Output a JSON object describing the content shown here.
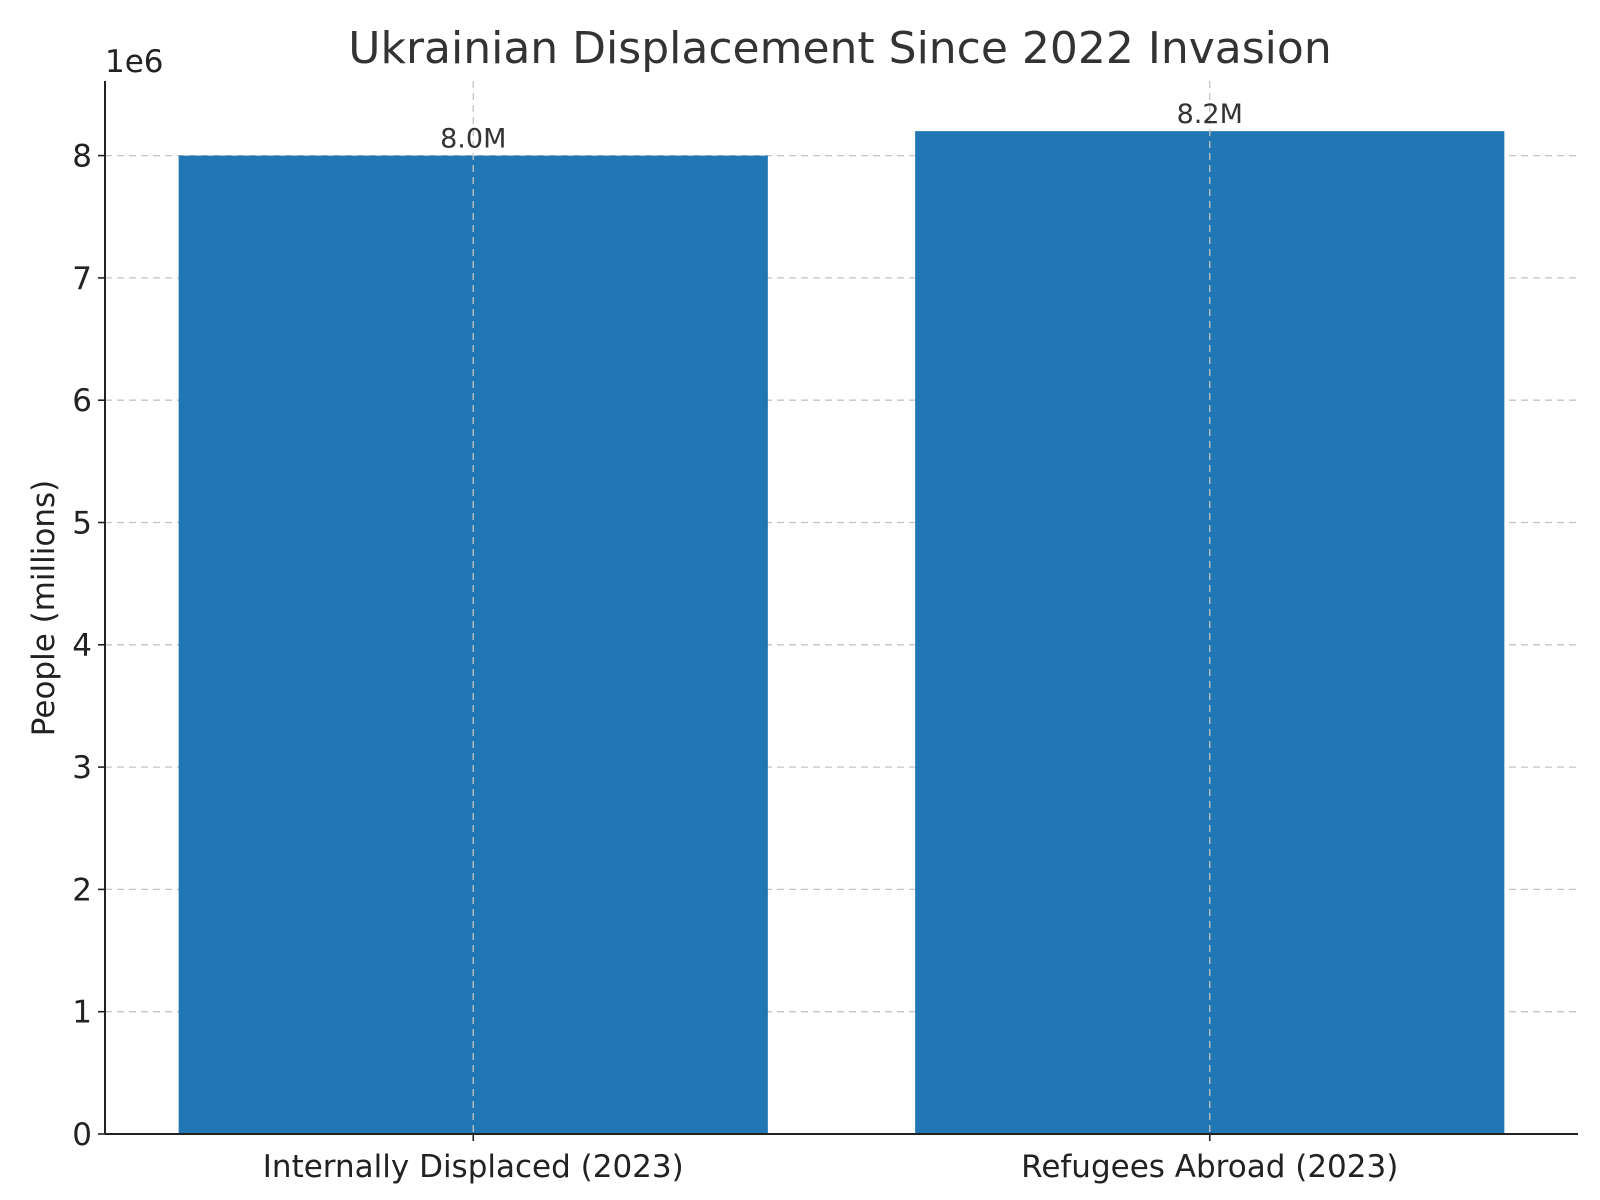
{
  "chart_data": {
    "type": "bar",
    "title": "Ukrainian Displacement Since 2022 Invasion",
    "xlabel": "",
    "ylabel": "People (millions)",
    "y_offset_text": "1e6",
    "categories": [
      "Internally Displaced (2023)",
      "Refugees Abroad (2023)"
    ],
    "values": [
      8000000,
      8200000
    ],
    "value_labels": [
      "8.0M",
      "8.2M"
    ],
    "y_tick_labels": [
      "0",
      "1",
      "2",
      "3",
      "4",
      "5",
      "6",
      "7",
      "8"
    ],
    "y_ticks": [
      0,
      1000000,
      2000000,
      3000000,
      4000000,
      5000000,
      6000000,
      7000000,
      8000000
    ],
    "ylim": [
      0,
      8610000
    ],
    "grid": true,
    "bar_color": "#2077b4"
  }
}
